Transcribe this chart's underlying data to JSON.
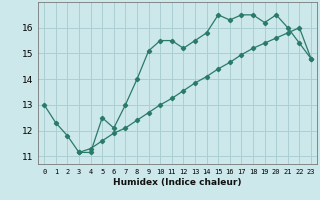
{
  "xlabel": "Humidex (Indice chaleur)",
  "bg_color": "#cce8ea",
  "grid_color": "#aacfd2",
  "line_color": "#2a7a6a",
  "xlim": [
    -0.5,
    23.5
  ],
  "ylim": [
    10.7,
    17.0
  ],
  "xticks": [
    0,
    1,
    2,
    3,
    4,
    5,
    6,
    7,
    8,
    9,
    10,
    11,
    12,
    13,
    14,
    15,
    16,
    17,
    18,
    19,
    20,
    21,
    22,
    23
  ],
  "yticks": [
    11,
    12,
    13,
    14,
    15,
    16
  ],
  "line1_x": [
    0,
    1,
    2,
    3,
    4,
    5,
    6,
    7,
    8,
    9,
    10,
    11,
    12,
    13,
    14,
    15,
    16,
    17,
    18,
    19,
    20,
    21,
    22,
    23
  ],
  "line1_y": [
    13.0,
    12.3,
    11.8,
    11.15,
    11.15,
    12.5,
    12.1,
    13.0,
    14.0,
    15.1,
    15.5,
    15.5,
    15.2,
    15.5,
    15.8,
    16.5,
    16.3,
    16.5,
    16.5,
    16.2,
    16.5,
    16.0,
    15.4,
    14.8
  ],
  "line2_x": [
    3,
    4,
    5,
    6,
    7,
    8,
    9,
    10,
    11,
    12,
    13,
    14,
    15,
    16,
    17,
    18,
    19,
    20,
    21,
    22,
    23
  ],
  "line2_y": [
    11.15,
    11.3,
    11.6,
    11.9,
    12.1,
    12.4,
    12.7,
    13.0,
    13.25,
    13.55,
    13.85,
    14.1,
    14.4,
    14.65,
    14.95,
    15.2,
    15.4,
    15.6,
    15.8,
    16.0,
    14.8
  ]
}
